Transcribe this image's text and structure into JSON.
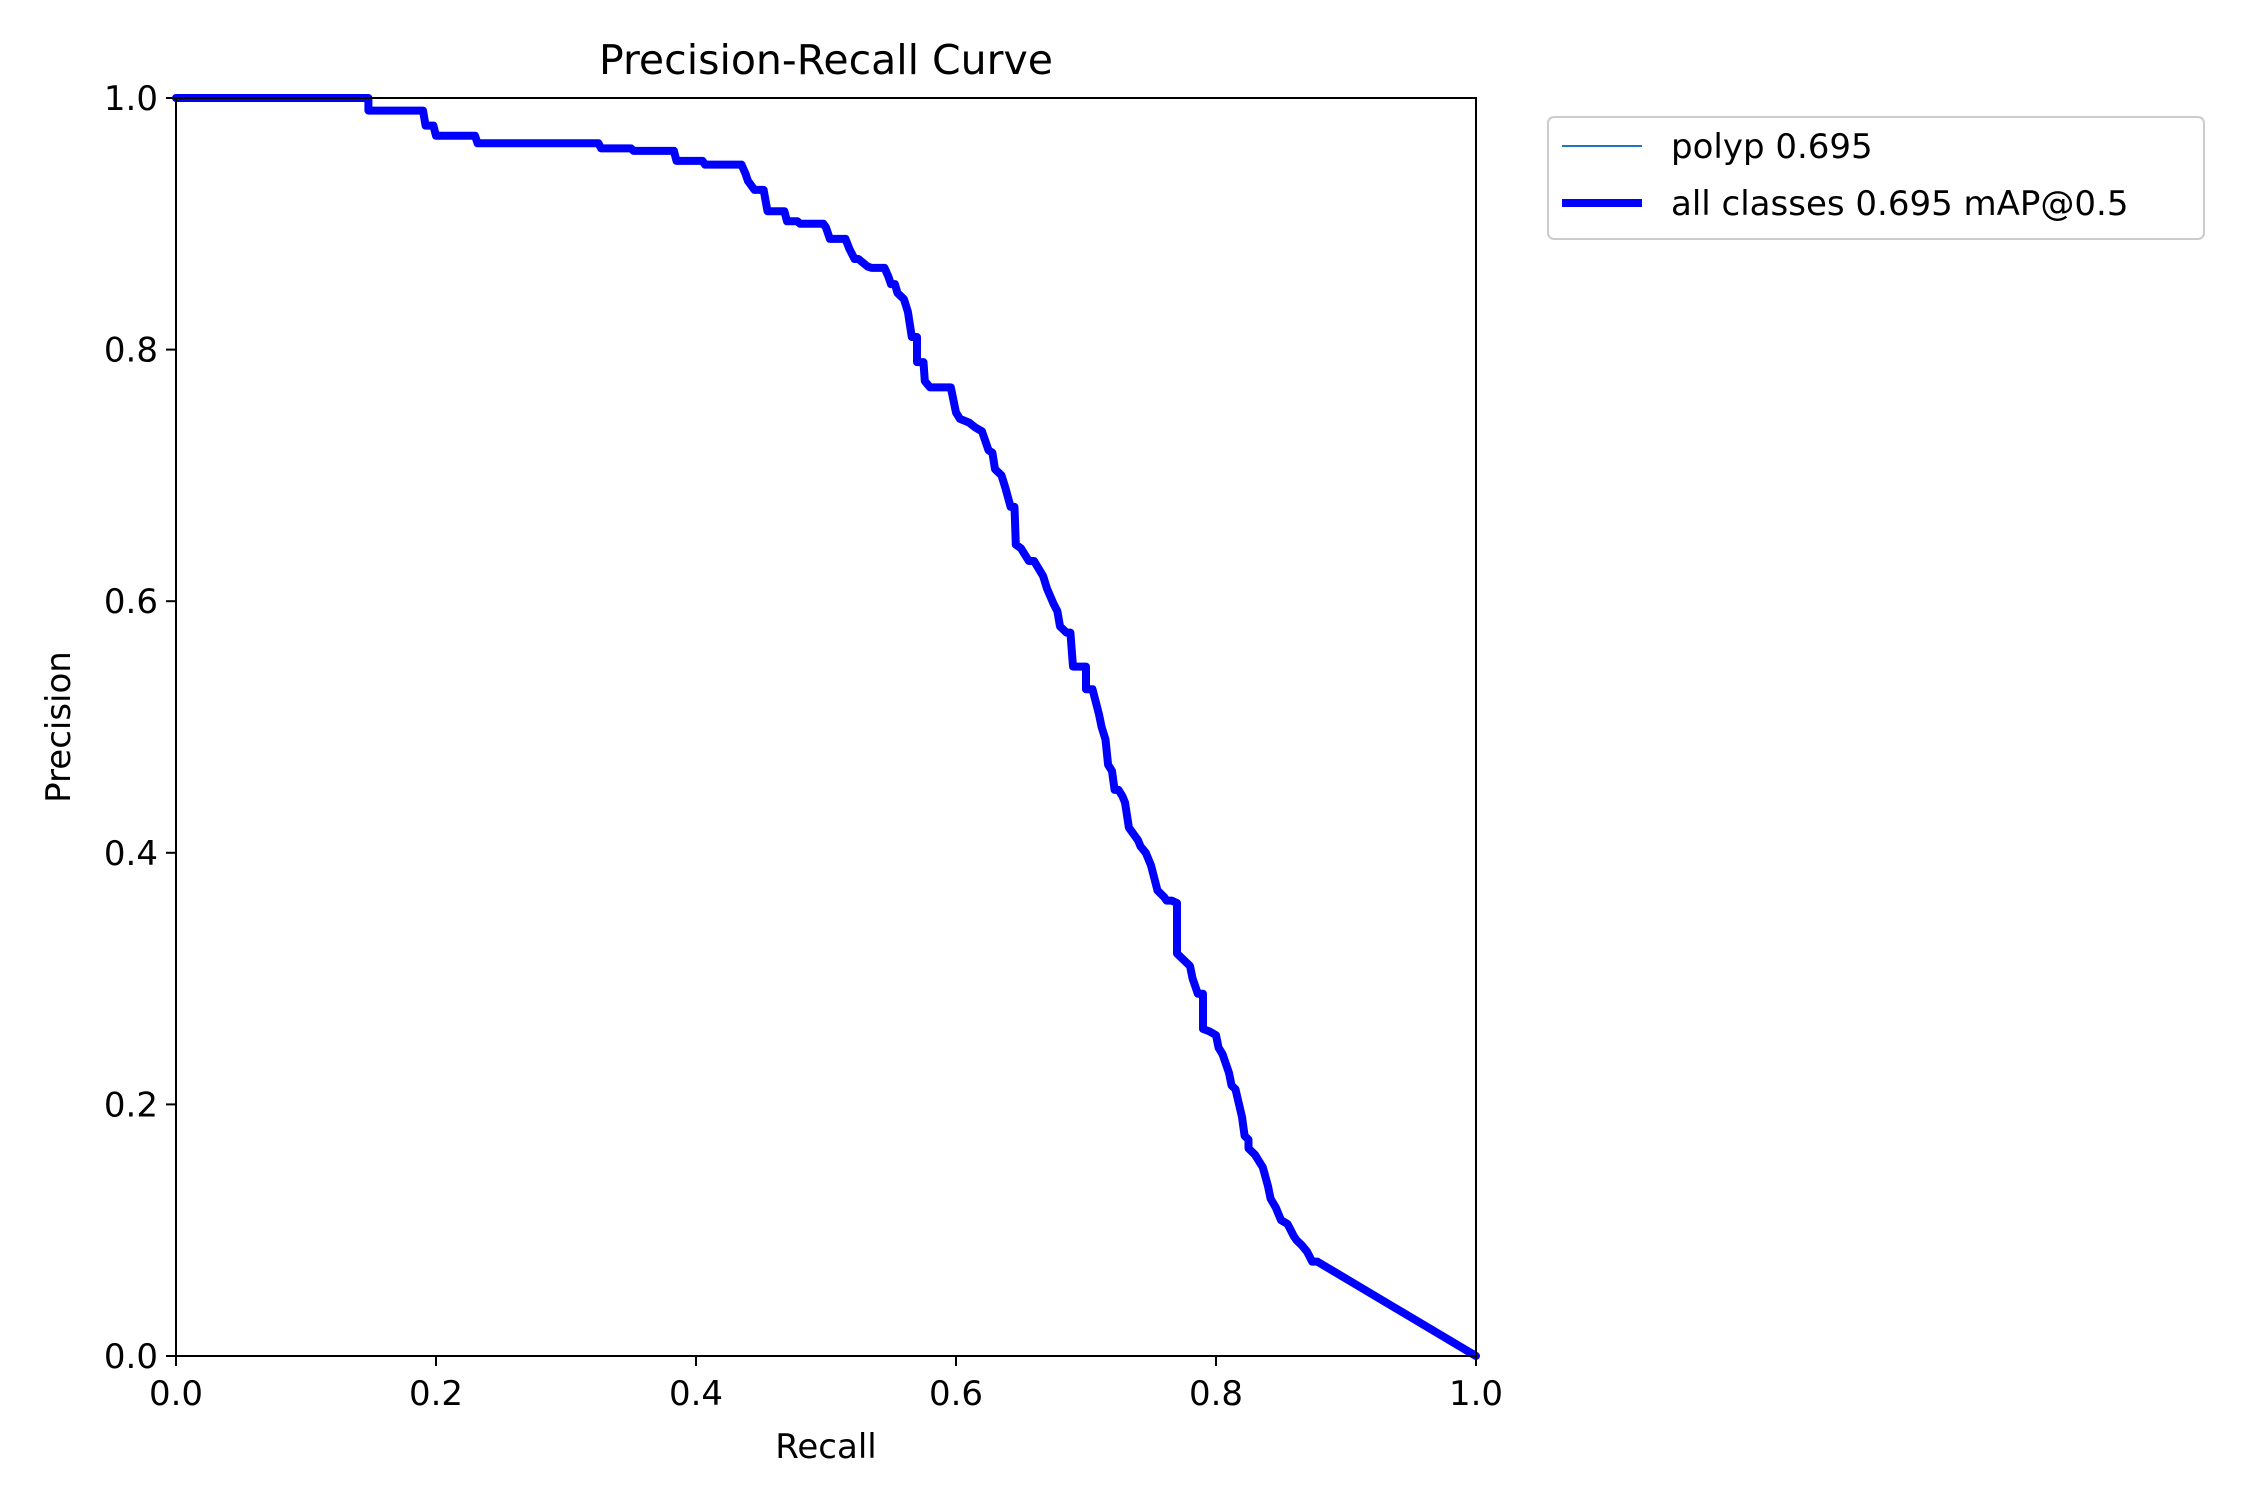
{
  "chart_data": {
    "type": "line",
    "title": "Precision-Recall Curve",
    "xlabel": "Recall",
    "ylabel": "Precision",
    "xlim": [
      0,
      1
    ],
    "ylim": [
      0,
      1
    ],
    "xticks": [
      "0.0",
      "0.2",
      "0.4",
      "0.6",
      "0.8",
      "1.0"
    ],
    "yticks": [
      "0.0",
      "0.2",
      "0.4",
      "0.6",
      "0.8",
      "1.0"
    ],
    "grid": false,
    "legend_position": "outside-top-right",
    "legend": [
      {
        "label": "polyp 0.695",
        "color": "#1f77b4",
        "style": "thin"
      },
      {
        "label": "all classes 0.695 mAP@0.5",
        "color": "#0000ff",
        "style": "thick"
      }
    ],
    "series": [
      {
        "name": "polyp 0.695",
        "color": "#1f77b4",
        "x": [
          0.0,
          0.148,
          0.148,
          0.19,
          0.192,
          0.198,
          0.2,
          0.23,
          0.232,
          0.325,
          0.327,
          0.35,
          0.352,
          0.383,
          0.385,
          0.405,
          0.407,
          0.435,
          0.438,
          0.44,
          0.445,
          0.452,
          0.455,
          0.468,
          0.47,
          0.478,
          0.48,
          0.498,
          0.5,
          0.503,
          0.505,
          0.515,
          0.518,
          0.522,
          0.525,
          0.532,
          0.535,
          0.545,
          0.548,
          0.55,
          0.553,
          0.555,
          0.56,
          0.563,
          0.566,
          0.57,
          0.57,
          0.575,
          0.576,
          0.58,
          0.583,
          0.596,
          0.598,
          0.6,
          0.603,
          0.61,
          0.615,
          0.62,
          0.625,
          0.628,
          0.63,
          0.635,
          0.638,
          0.642,
          0.645,
          0.646,
          0.65,
          0.65,
          0.656,
          0.66,
          0.667,
          0.67,
          0.675,
          0.678,
          0.68,
          0.685,
          0.688,
          0.69,
          0.697,
          0.7,
          0.7,
          0.7,
          0.705,
          0.71,
          0.712,
          0.715,
          0.717,
          0.72,
          0.722,
          0.725,
          0.728,
          0.73,
          0.733,
          0.74,
          0.742,
          0.746,
          0.75,
          0.755,
          0.76,
          0.762,
          0.766,
          0.77,
          0.77,
          0.78,
          0.782,
          0.782,
          0.786,
          0.79,
          0.79,
          0.795,
          0.8,
          0.802,
          0.805,
          0.81,
          0.812,
          0.815,
          0.82,
          0.822,
          0.825,
          0.825,
          0.83,
          0.836,
          0.84,
          0.842,
          0.846,
          0.85,
          0.855,
          0.86,
          0.862,
          0.866,
          0.87,
          0.874,
          0.878,
          1.0
        ],
        "y": [
          1.0,
          1.0,
          0.99,
          0.99,
          0.978,
          0.978,
          0.97,
          0.97,
          0.964,
          0.964,
          0.96,
          0.96,
          0.958,
          0.958,
          0.95,
          0.95,
          0.947,
          0.947,
          0.94,
          0.934,
          0.927,
          0.927,
          0.91,
          0.91,
          0.902,
          0.902,
          0.9,
          0.9,
          0.897,
          0.888,
          0.888,
          0.888,
          0.88,
          0.872,
          0.872,
          0.866,
          0.865,
          0.865,
          0.858,
          0.852,
          0.852,
          0.845,
          0.84,
          0.83,
          0.81,
          0.81,
          0.79,
          0.79,
          0.775,
          0.77,
          0.77,
          0.77,
          0.76,
          0.75,
          0.745,
          0.742,
          0.738,
          0.735,
          0.72,
          0.718,
          0.705,
          0.7,
          0.69,
          0.675,
          0.675,
          0.645,
          0.642,
          0.642,
          0.632,
          0.632,
          0.62,
          0.61,
          0.598,
          0.592,
          0.58,
          0.575,
          0.575,
          0.548,
          0.548,
          0.548,
          0.535,
          0.53,
          0.53,
          0.51,
          0.5,
          0.49,
          0.47,
          0.465,
          0.45,
          0.45,
          0.445,
          0.44,
          0.42,
          0.41,
          0.405,
          0.4,
          0.39,
          0.37,
          0.365,
          0.362,
          0.362,
          0.36,
          0.32,
          0.31,
          0.3,
          0.3,
          0.288,
          0.288,
          0.26,
          0.258,
          0.255,
          0.245,
          0.24,
          0.225,
          0.215,
          0.212,
          0.19,
          0.175,
          0.172,
          0.165,
          0.16,
          0.15,
          0.135,
          0.125,
          0.118,
          0.108,
          0.105,
          0.095,
          0.092,
          0.088,
          0.083,
          0.075,
          0.075,
          0.0
        ]
      },
      {
        "name": "all classes 0.695 mAP@0.5",
        "color": "#0000ff",
        "x": [
          0.0,
          0.148,
          0.148,
          0.19,
          0.192,
          0.198,
          0.2,
          0.23,
          0.232,
          0.325,
          0.327,
          0.35,
          0.352,
          0.383,
          0.385,
          0.405,
          0.407,
          0.435,
          0.438,
          0.44,
          0.445,
          0.452,
          0.455,
          0.468,
          0.47,
          0.478,
          0.48,
          0.498,
          0.5,
          0.503,
          0.505,
          0.515,
          0.518,
          0.522,
          0.525,
          0.532,
          0.535,
          0.545,
          0.548,
          0.55,
          0.553,
          0.555,
          0.56,
          0.563,
          0.566,
          0.57,
          0.57,
          0.575,
          0.576,
          0.58,
          0.583,
          0.596,
          0.598,
          0.6,
          0.603,
          0.61,
          0.615,
          0.62,
          0.625,
          0.628,
          0.63,
          0.635,
          0.638,
          0.642,
          0.645,
          0.646,
          0.65,
          0.65,
          0.656,
          0.66,
          0.667,
          0.67,
          0.675,
          0.678,
          0.68,
          0.685,
          0.688,
          0.69,
          0.697,
          0.7,
          0.7,
          0.7,
          0.705,
          0.71,
          0.712,
          0.715,
          0.717,
          0.72,
          0.722,
          0.725,
          0.728,
          0.73,
          0.733,
          0.74,
          0.742,
          0.746,
          0.75,
          0.755,
          0.76,
          0.762,
          0.766,
          0.77,
          0.77,
          0.78,
          0.782,
          0.782,
          0.786,
          0.79,
          0.79,
          0.795,
          0.8,
          0.802,
          0.805,
          0.81,
          0.812,
          0.815,
          0.82,
          0.822,
          0.825,
          0.825,
          0.83,
          0.836,
          0.84,
          0.842,
          0.846,
          0.85,
          0.855,
          0.86,
          0.862,
          0.866,
          0.87,
          0.874,
          0.878,
          1.0
        ],
        "y": [
          1.0,
          1.0,
          0.99,
          0.99,
          0.978,
          0.978,
          0.97,
          0.97,
          0.964,
          0.964,
          0.96,
          0.96,
          0.958,
          0.958,
          0.95,
          0.95,
          0.947,
          0.947,
          0.94,
          0.934,
          0.927,
          0.927,
          0.91,
          0.91,
          0.902,
          0.902,
          0.9,
          0.9,
          0.897,
          0.888,
          0.888,
          0.888,
          0.88,
          0.872,
          0.872,
          0.866,
          0.865,
          0.865,
          0.858,
          0.852,
          0.852,
          0.845,
          0.84,
          0.83,
          0.81,
          0.81,
          0.79,
          0.79,
          0.775,
          0.77,
          0.77,
          0.77,
          0.76,
          0.75,
          0.745,
          0.742,
          0.738,
          0.735,
          0.72,
          0.718,
          0.705,
          0.7,
          0.69,
          0.675,
          0.675,
          0.645,
          0.642,
          0.642,
          0.632,
          0.632,
          0.62,
          0.61,
          0.598,
          0.592,
          0.58,
          0.575,
          0.575,
          0.548,
          0.548,
          0.548,
          0.535,
          0.53,
          0.53,
          0.51,
          0.5,
          0.49,
          0.47,
          0.465,
          0.45,
          0.45,
          0.445,
          0.44,
          0.42,
          0.41,
          0.405,
          0.4,
          0.39,
          0.37,
          0.365,
          0.362,
          0.362,
          0.36,
          0.32,
          0.31,
          0.3,
          0.3,
          0.288,
          0.288,
          0.26,
          0.258,
          0.255,
          0.245,
          0.24,
          0.225,
          0.215,
          0.212,
          0.19,
          0.175,
          0.172,
          0.165,
          0.16,
          0.15,
          0.135,
          0.125,
          0.118,
          0.108,
          0.105,
          0.095,
          0.092,
          0.088,
          0.083,
          0.075,
          0.075,
          0.0
        ]
      }
    ]
  }
}
